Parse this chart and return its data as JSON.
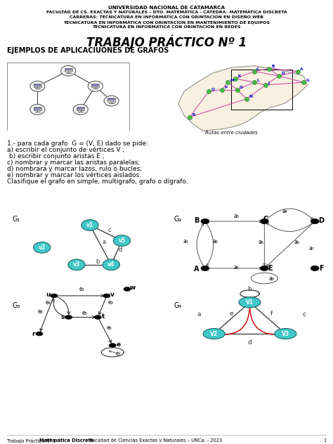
{
  "header_line1": "UNIVERSIDAD NACIONAL DE CATAMARCA",
  "header_line2": "FACULTAD DE CS. EXACTAS Y NATURALES – DTO. MATEMÁTICA - CÁTEDRA: MATEMÁTICA DISCRETA",
  "header_line3": "CARRERAS: TECNICATURA EN INFORMÁTICA CON ORINTACION EN DISEÑO WEB",
  "header_line4": "TECNICATURA EN INFORMÁTICA CON ORINTACION EN MANTENIMIENTO DE EQUIPOS",
  "header_line5": "TECNICATURA EN INFORMATICA CON ORINTACION EN REDES",
  "title": "TRABAJO PRÁCTICO Nº 1",
  "subtitle": "EJEMPLOS DE APLICACIUONES DE GRAFOS",
  "instructions_title": "1.- para cada grafo  G = (V, E) dado se pide:",
  "instructions": [
    "a) escribir el conjunto de vértices V ;",
    " b) escribir conjunto aristas E ;",
    "c) nombrar y marcar las aristas paralelas;",
    "d) nombrara y marcar lazos, rulo o bucles;",
    "e) nombrar y marcar los vértices aislados.",
    "Clasifique el grafo en simple, multigrafo, grafo o dígrafo."
  ],
  "footer_plain": "Trabajo Práctico Nº 1-  ",
  "footer_bold": "Matemática Discreta",
  "footer_rest": " - Facultad de Ciencias Exactas y Naturales – UNCa. - 2023",
  "footer_page": "1",
  "bg": "#ffffff",
  "node_color": "#40c8c8",
  "node_color_dark": "#000000"
}
